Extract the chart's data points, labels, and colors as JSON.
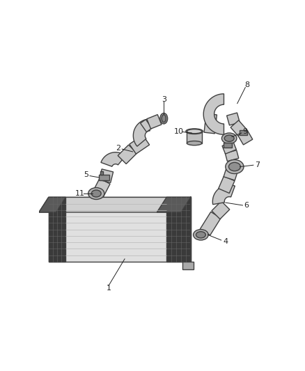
{
  "bg_color": "#ffffff",
  "line_color": "#404040",
  "label_color": "#222222",
  "label_fontsize": 8.0,
  "hose_fill": "#c8c8c8",
  "hose_edge": "#404040",
  "mesh_dark": "#3a3a3a",
  "mesh_mid": "#5a5a5a",
  "cooler_fill": "#e0e0e0",
  "cooler_top": "#d0d0d0",
  "cooler_right": "#c0c0c0"
}
